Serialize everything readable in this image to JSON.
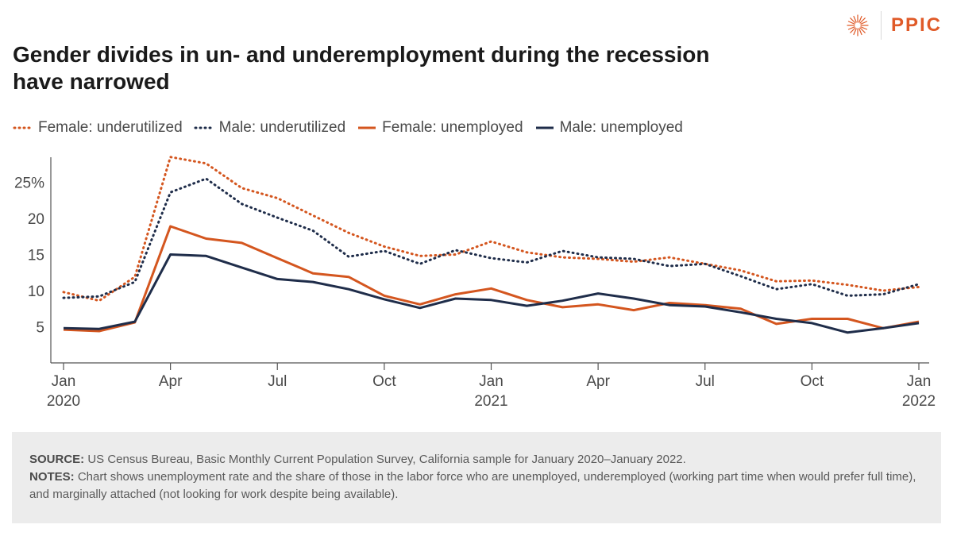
{
  "logo": {
    "text": "PPIC",
    "icon": "sunburst-icon"
  },
  "title": "Gender divides in un- and underemployment during the recession have narrowed",
  "colors": {
    "orange": "#d4561f",
    "navy": "#1f2d4a",
    "axis": "#555555"
  },
  "chart_data": {
    "type": "line",
    "title": "Gender divides in un- and underemployment during the recession have narrowed",
    "ylim": [
      0,
      28
    ],
    "yticks": [
      {
        "value": 5,
        "label": "5"
      },
      {
        "value": 10,
        "label": "10"
      },
      {
        "value": 15,
        "label": "15"
      },
      {
        "value": 20,
        "label": "20"
      },
      {
        "value": 25,
        "label": "25%"
      }
    ],
    "x": [
      "Jan 2020",
      "Feb 2020",
      "Mar 2020",
      "Apr 2020",
      "May 2020",
      "Jun 2020",
      "Jul 2020",
      "Aug 2020",
      "Sep 2020",
      "Oct 2020",
      "Nov 2020",
      "Dec 2020",
      "Jan 2021",
      "Feb 2021",
      "Mar 2021",
      "Apr 2021",
      "May 2021",
      "Jun 2021",
      "Jul 2021",
      "Aug 2021",
      "Sep 2021",
      "Oct 2021",
      "Nov 2021",
      "Dec 2021",
      "Jan 2022"
    ],
    "xticks": [
      {
        "index": 0,
        "month": "Jan",
        "year": "2020"
      },
      {
        "index": 3,
        "month": "Apr",
        "year": ""
      },
      {
        "index": 6,
        "month": "Jul",
        "year": ""
      },
      {
        "index": 9,
        "month": "Oct",
        "year": ""
      },
      {
        "index": 12,
        "month": "Jan",
        "year": "2021"
      },
      {
        "index": 15,
        "month": "Apr",
        "year": ""
      },
      {
        "index": 18,
        "month": "Jul",
        "year": ""
      },
      {
        "index": 21,
        "month": "Oct",
        "year": ""
      },
      {
        "index": 24,
        "month": "Jan",
        "year": "2022"
      }
    ],
    "series": [
      {
        "name": "Female: underutilized",
        "style": "dotted",
        "color": "#d4561f",
        "values": [
          9.8,
          8.6,
          11.9,
          28.5,
          27.6,
          24.2,
          22.8,
          20.4,
          18.0,
          16.1,
          14.8,
          15.0,
          16.8,
          15.3,
          14.6,
          14.4,
          14.0,
          14.6,
          13.7,
          12.8,
          11.3,
          11.4,
          10.8,
          10.0,
          10.5
        ]
      },
      {
        "name": "Male: underutilized",
        "style": "dotted",
        "color": "#1f2d4a",
        "values": [
          9.0,
          9.2,
          11.2,
          23.6,
          25.5,
          22.0,
          20.1,
          18.3,
          14.7,
          15.5,
          13.7,
          15.6,
          14.5,
          13.9,
          15.5,
          14.6,
          14.4,
          13.4,
          13.7,
          12.0,
          10.2,
          10.9,
          9.3,
          9.5,
          10.9
        ]
      },
      {
        "name": "Female: unemployed",
        "style": "solid",
        "color": "#d4561f",
        "values": [
          4.6,
          4.4,
          5.6,
          18.9,
          17.2,
          16.6,
          14.5,
          12.4,
          11.9,
          9.3,
          8.1,
          9.5,
          10.3,
          8.7,
          7.7,
          8.1,
          7.3,
          8.3,
          8.0,
          7.5,
          5.4,
          6.1,
          6.1,
          4.8,
          5.7
        ]
      },
      {
        "name": "Male: unemployed",
        "style": "solid",
        "color": "#1f2d4a",
        "values": [
          4.8,
          4.7,
          5.7,
          15.0,
          14.8,
          13.2,
          11.6,
          11.2,
          10.2,
          8.8,
          7.6,
          8.9,
          8.7,
          7.9,
          8.6,
          9.6,
          8.9,
          8.0,
          7.8,
          7.0,
          6.1,
          5.5,
          4.2,
          4.8,
          5.5
        ]
      }
    ]
  },
  "notes": {
    "source_label": "SOURCE:",
    "source_text": "US Census Bureau, Basic Monthly Current Population Survey, California sample for January 2020–January 2022.",
    "notes_label": "NOTES:",
    "notes_text": "Chart shows unemployment rate and the share of those in the labor force who are unemployed, underemployed (working part time when would prefer full time), and marginally attached (not looking for work despite being available)."
  }
}
